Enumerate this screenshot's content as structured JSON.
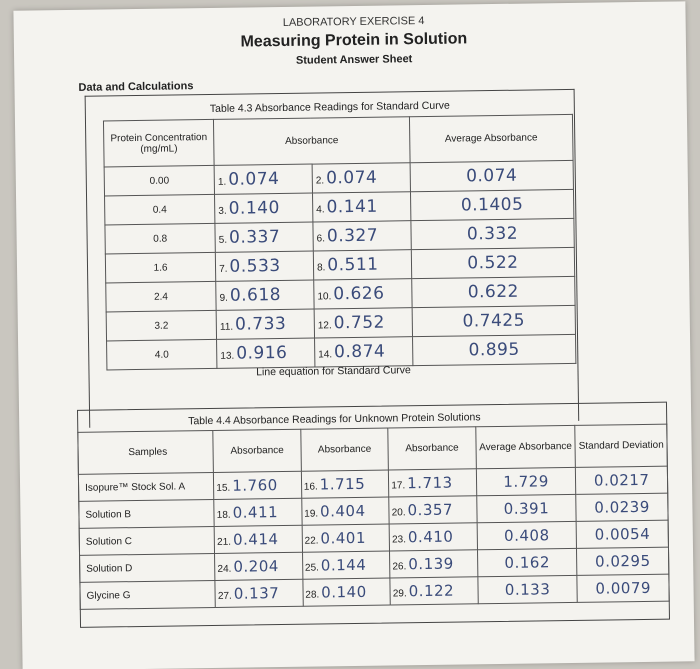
{
  "header": {
    "exercise": "LABORATORY EXERCISE 4",
    "title": "Measuring Protein in Solution",
    "subtitle": "Student Answer Sheet",
    "section": "Data and Calculations"
  },
  "table43": {
    "caption": "Table 4.3 Absorbance Readings for Standard Curve",
    "col_conc": "Protein Concentration (mg/mL)",
    "col_abs": "Absorbance",
    "col_avg": "Average Absorbance",
    "rows": [
      {
        "conc": "0.00",
        "n1": "1.",
        "a1": "0.074",
        "n2": "2.",
        "a2": "0.074",
        "avg": "0.074"
      },
      {
        "conc": "0.4",
        "n1": "3.",
        "a1": "0.140",
        "n2": "4.",
        "a2": "0.141",
        "avg": "0.1405"
      },
      {
        "conc": "0.8",
        "n1": "5.",
        "a1": "0.337",
        "n2": "6.",
        "a2": "0.327",
        "avg": "0.332"
      },
      {
        "conc": "1.6",
        "n1": "7.",
        "a1": "0.533",
        "n2": "8.",
        "a2": "0.511",
        "avg": "0.522"
      },
      {
        "conc": "2.4",
        "n1": "9.",
        "a1": "0.618",
        "n2": "10.",
        "a2": "0.626",
        "avg": "0.622"
      },
      {
        "conc": "3.2",
        "n1": "11.",
        "a1": "0.733",
        "n2": "12.",
        "a2": "0.752",
        "avg": "0.7425"
      },
      {
        "conc": "4.0",
        "n1": "13.",
        "a1": "0.916",
        "n2": "14.",
        "a2": "0.874",
        "avg": "0.895"
      }
    ],
    "line_equation_label": "Line equation for Standard Curve"
  },
  "table44": {
    "caption": "Table 4.4 Absorbance Readings for Unknown Protein Solutions",
    "col_samples": "Samples",
    "col_abs": "Absorbance",
    "col_avg": "Average Absorbance",
    "col_sd": "Standard Deviation",
    "rows": [
      {
        "sample": "Isopure™ Stock Sol. A",
        "n1": "15.",
        "a1": "1.760",
        "n2": "16.",
        "a2": "1.715",
        "n3": "17.",
        "a3": "1.713",
        "avg": "1.729",
        "sd": "0.0217"
      },
      {
        "sample": "Solution B",
        "n1": "18.",
        "a1": "0.411",
        "n2": "19.",
        "a2": "0.404",
        "n3": "20.",
        "a3": "0.357",
        "avg": "0.391",
        "sd": "0.0239"
      },
      {
        "sample": "Solution C",
        "n1": "21.",
        "a1": "0.414",
        "n2": "22.",
        "a2": "0.401",
        "n3": "23.",
        "a3": "0.410",
        "avg": "0.408",
        "sd": "0.0054"
      },
      {
        "sample": "Solution D",
        "n1": "24.",
        "a1": "0.204",
        "n2": "25.",
        "a2": "0.144",
        "n3": "26.",
        "a3": "0.139",
        "avg": "0.162",
        "sd": "0.0295"
      },
      {
        "sample": "Glycine G",
        "n1": "27.",
        "a1": "0.137",
        "n2": "28.",
        "a2": "0.140",
        "n3": "29.",
        "a3": "0.122",
        "avg": "0.133",
        "sd": "0.0079"
      }
    ]
  },
  "colors": {
    "handwriting": "#3a4b7a",
    "paper": "#f4f3ef",
    "background": "#c9c6bf"
  }
}
